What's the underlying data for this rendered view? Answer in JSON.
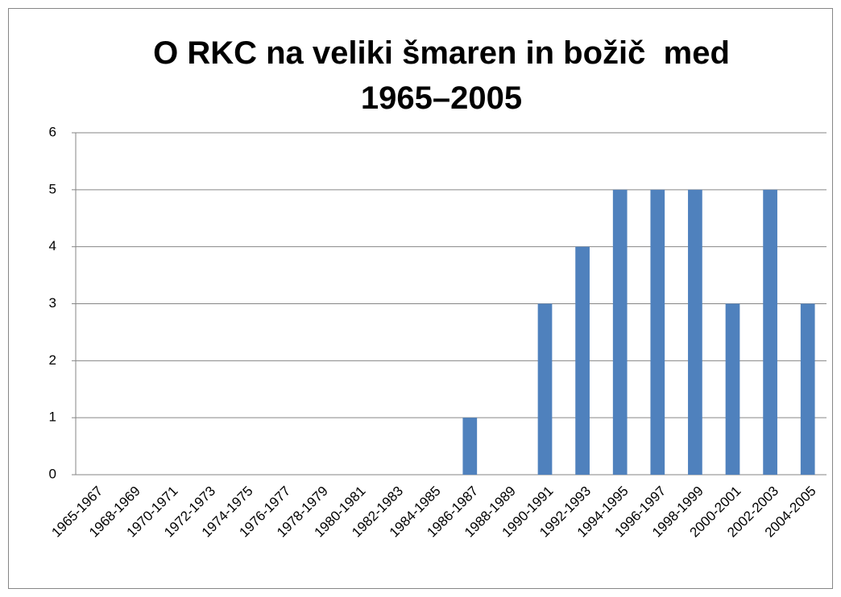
{
  "chart_data": {
    "type": "bar",
    "title": "O RKC na veliki šmaren in božič  med 1965–2005",
    "categories": [
      "1965-1967",
      "1968-1969",
      "1970-1971",
      "1972-1973",
      "1974-1975",
      "1976-1977",
      "1978-1979",
      "1980-1981",
      "1982-1983",
      "1984-1985",
      "1986-1987",
      "1988-1989",
      "1990-1991",
      "1992-1993",
      "1994-1995",
      "1996-1997",
      "1998-1999",
      "2000-2001",
      "2002-2003",
      "2004-2005"
    ],
    "values": [
      0,
      0,
      0,
      0,
      0,
      0,
      0,
      0,
      0,
      0,
      1,
      0,
      3,
      4,
      5,
      5,
      5,
      3,
      5,
      3
    ],
    "color": "#4f81bd",
    "ylim": [
      0,
      6
    ],
    "yticks": [
      0,
      1,
      2,
      3,
      4,
      5,
      6
    ],
    "grid": true
  }
}
